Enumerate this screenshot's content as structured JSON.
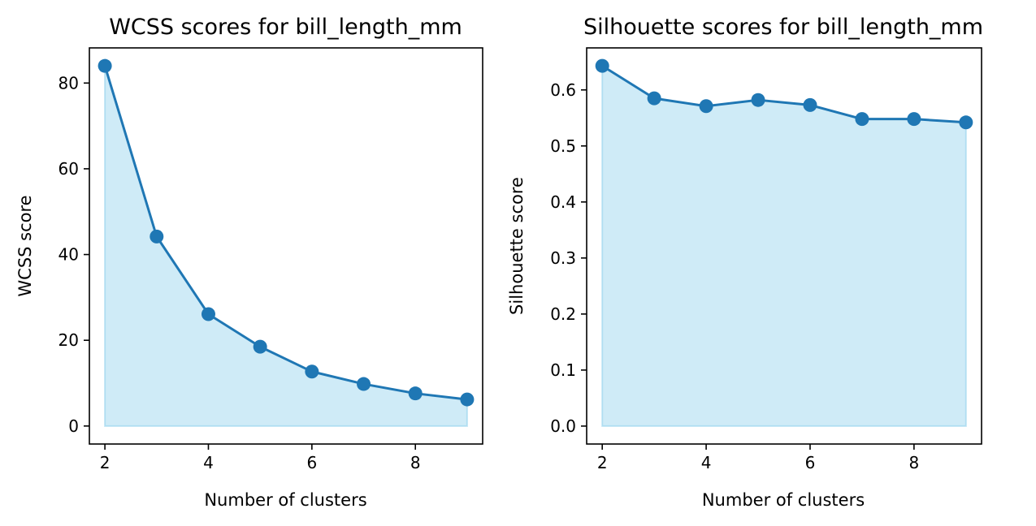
{
  "chart_data": [
    {
      "type": "line",
      "title": "WCSS scores for bill_length_mm",
      "xlabel": "Number of clusters",
      "ylabel": "WCSS score",
      "x": [
        2,
        3,
        4,
        5,
        6,
        7,
        8,
        9
      ],
      "series": [
        {
          "values": [
            84.0,
            44.2,
            26.1,
            18.5,
            12.7,
            9.8,
            7.6,
            6.2
          ]
        }
      ],
      "xlim": [
        1.7,
        9.3
      ],
      "ylim": [
        -4.2,
        88.2
      ],
      "xticks": [
        2,
        4,
        6,
        8
      ],
      "yticks": [
        0,
        20,
        40,
        60,
        80
      ],
      "xtick_labels": [
        "2",
        "4",
        "6",
        "8"
      ],
      "ytick_labels": [
        "0",
        "20",
        "40",
        "60",
        "80"
      ],
      "grid": false,
      "filled_area": true,
      "marker": "circle",
      "line_color": "#1f77b4",
      "fill_color": "#87ceeb"
    },
    {
      "type": "line",
      "title": "Silhouette scores for bill_length_mm",
      "xlabel": "Number of clusters",
      "ylabel": "Silhouette score",
      "x": [
        2,
        3,
        4,
        5,
        6,
        7,
        8,
        9
      ],
      "series": [
        {
          "values": [
            0.643,
            0.585,
            0.571,
            0.582,
            0.573,
            0.548,
            0.548,
            0.542
          ]
        }
      ],
      "xlim": [
        1.7,
        9.3
      ],
      "ylim": [
        -0.032,
        0.675
      ],
      "xticks": [
        2,
        4,
        6,
        8
      ],
      "yticks": [
        0.0,
        0.1,
        0.2,
        0.3,
        0.4,
        0.5,
        0.6
      ],
      "xtick_labels": [
        "2",
        "4",
        "6",
        "8"
      ],
      "ytick_labels": [
        "0.0",
        "0.1",
        "0.2",
        "0.3",
        "0.4",
        "0.5",
        "0.6"
      ],
      "grid": false,
      "filled_area": true,
      "marker": "circle",
      "line_color": "#1f77b4",
      "fill_color": "#87ceeb"
    }
  ]
}
